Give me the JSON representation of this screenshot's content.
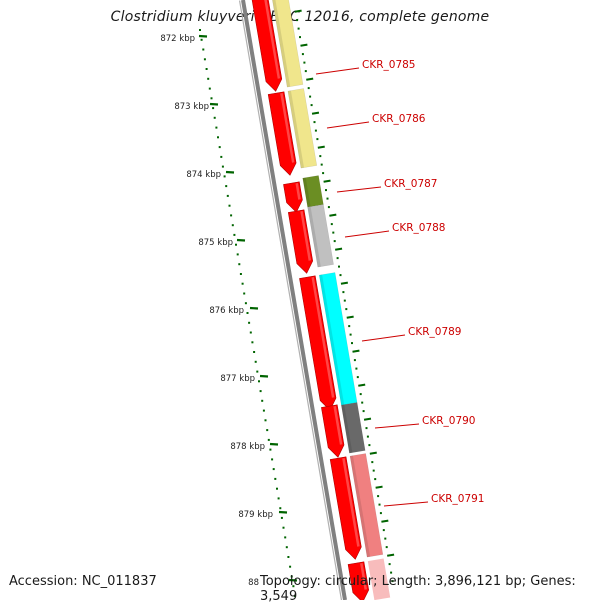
{
  "title": "Clostridium kluyveri NBRC 12016, complete genome",
  "accession": "Accession: NC_011837",
  "topology": "Topology: circular; Length: 3,896,121 bp; Genes: 3,549",
  "scale": {
    "ticks": [
      {
        "label": "872 kbp"
      },
      {
        "label": "873 kbp"
      },
      {
        "label": "874 kbp"
      },
      {
        "label": "875 kbp"
      },
      {
        "label": "876 kbp"
      },
      {
        "label": "877 kbp"
      },
      {
        "label": "878 kbp"
      },
      {
        "label": "879 kbp"
      },
      {
        "label": "88"
      }
    ],
    "tick_color": "#006400"
  },
  "genes": [
    {
      "label": "CKR_0785",
      "color": "#f0e68c"
    },
    {
      "label": "CKR_0786",
      "color": "#f0e68c"
    },
    {
      "label": "CKR_0787",
      "color": "#6b8e23"
    },
    {
      "label": "CKR_0788",
      "color": "#c0c0c0"
    },
    {
      "label": "CKR_0789",
      "color": "#00ffff"
    },
    {
      "label": "CKR_0790",
      "color": "#696969"
    },
    {
      "label": "CKR_0791",
      "color": "#f08080"
    }
  ],
  "colors": {
    "cds": "#ff0000",
    "backbone": "#808080",
    "label": "#cc0000"
  }
}
